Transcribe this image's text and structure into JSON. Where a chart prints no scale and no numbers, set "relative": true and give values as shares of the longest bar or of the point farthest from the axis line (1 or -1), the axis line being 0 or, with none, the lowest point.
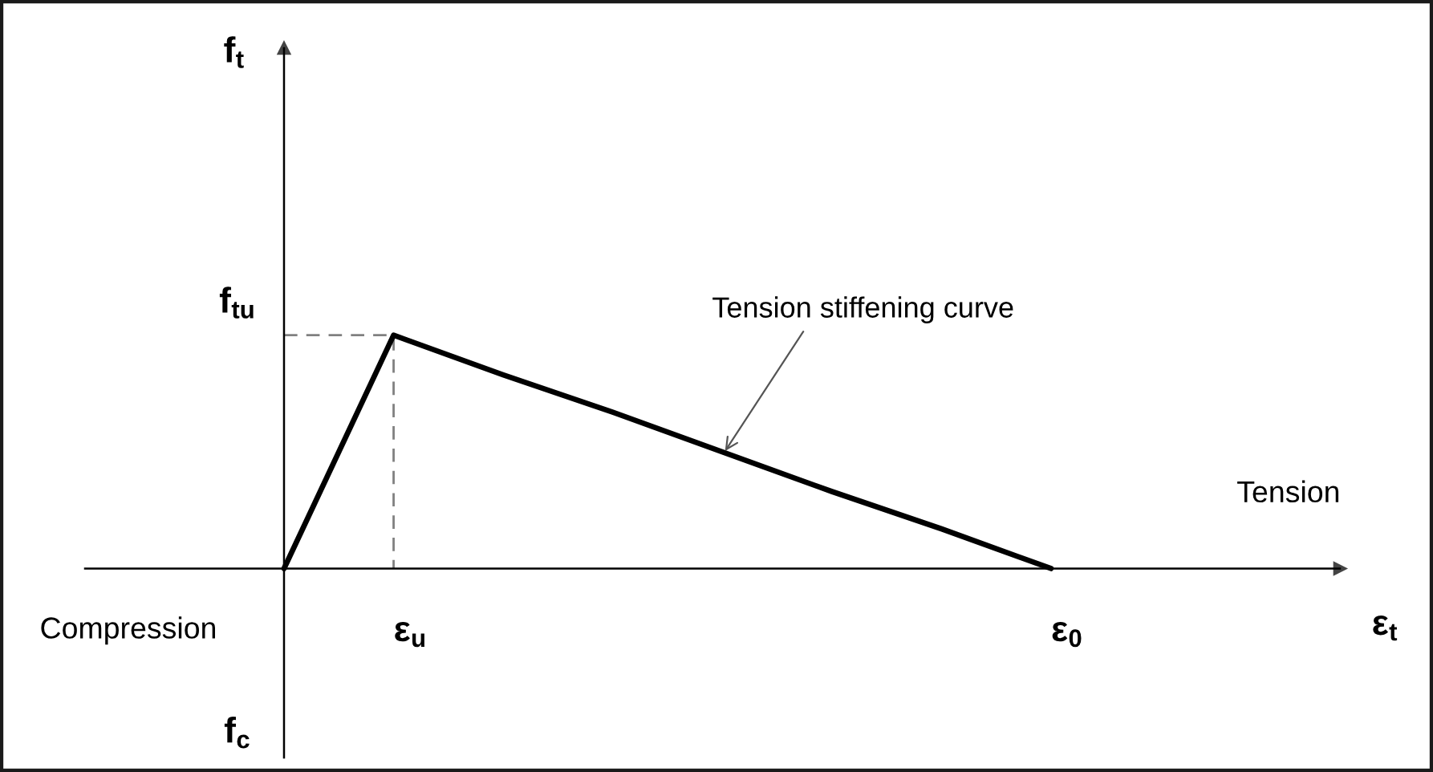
{
  "chart_data": {
    "type": "line",
    "relative": true,
    "categories": [
      null,
      "ε$_{u}$",
      null,
      null,
      null,
      null,
      null,
      "ε$_{0}$"
    ],
    "line_style": "solid",
    "marker": "none",
    "grid": false,
    "legend": false,
    "series": [
      {
        "color": "#000000",
        "values": [
          0,
          1,
          0.83,
          0.67,
          0.5,
          0.33,
          0.17,
          0
        ]
      },
      {
        "type": "step",
        "color": "#808080",
        "line_style": "dashed",
        "values": [
          1,
          0,
          null,
          null,
          null,
          null,
          null,
          null
        ]
      }
    ],
    "annotations": [
      "f$_{t}$",
      "f$_{tu}$",
      "Tension stiffening curve",
      "Tension",
      "Compression",
      "ε$_{t}$",
      "f$_{c}$"
    ]
  }
}
